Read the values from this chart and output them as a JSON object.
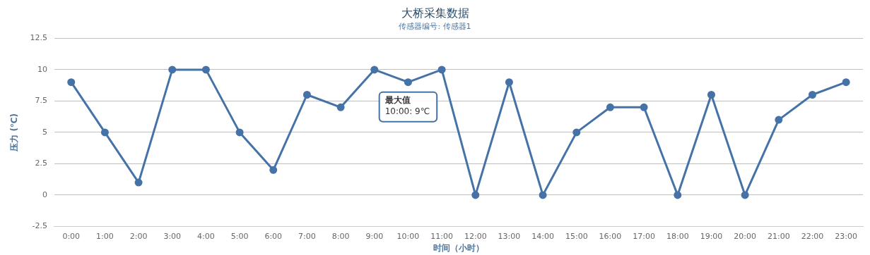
{
  "chart_data": {
    "type": "line",
    "title": "大桥采集数据",
    "subtitle": "传感器编号: 传感器1",
    "xlabel": "时间（小时）",
    "ylabel": "压力 (℃)",
    "categories": [
      "0:00",
      "1:00",
      "2:00",
      "3:00",
      "4:00",
      "5:00",
      "6:00",
      "7:00",
      "8:00",
      "9:00",
      "10:00",
      "11:00",
      "12:00",
      "13:00",
      "14:00",
      "15:00",
      "16:00",
      "17:00",
      "18:00",
      "19:00",
      "20:00",
      "21:00",
      "22:00",
      "23:00"
    ],
    "series": [
      {
        "color": "#4572a7",
        "values": [
          9,
          5,
          1,
          10,
          10,
          5,
          2,
          8,
          7,
          10,
          9,
          10,
          0,
          9,
          0,
          5,
          7,
          7,
          0,
          8,
          0,
          6,
          8,
          9
        ]
      }
    ],
    "ylim": [
      -2.5,
      12.5
    ],
    "yticks": [
      -2.5,
      0,
      2.5,
      5,
      7.5,
      10,
      12.5
    ],
    "grid": "y",
    "legend": false,
    "marker": "circle",
    "line_style": "solid",
    "annotations": [
      {
        "text": "最大值\n10:00: 9℃",
        "x": "10:00",
        "y": 9
      }
    ]
  }
}
